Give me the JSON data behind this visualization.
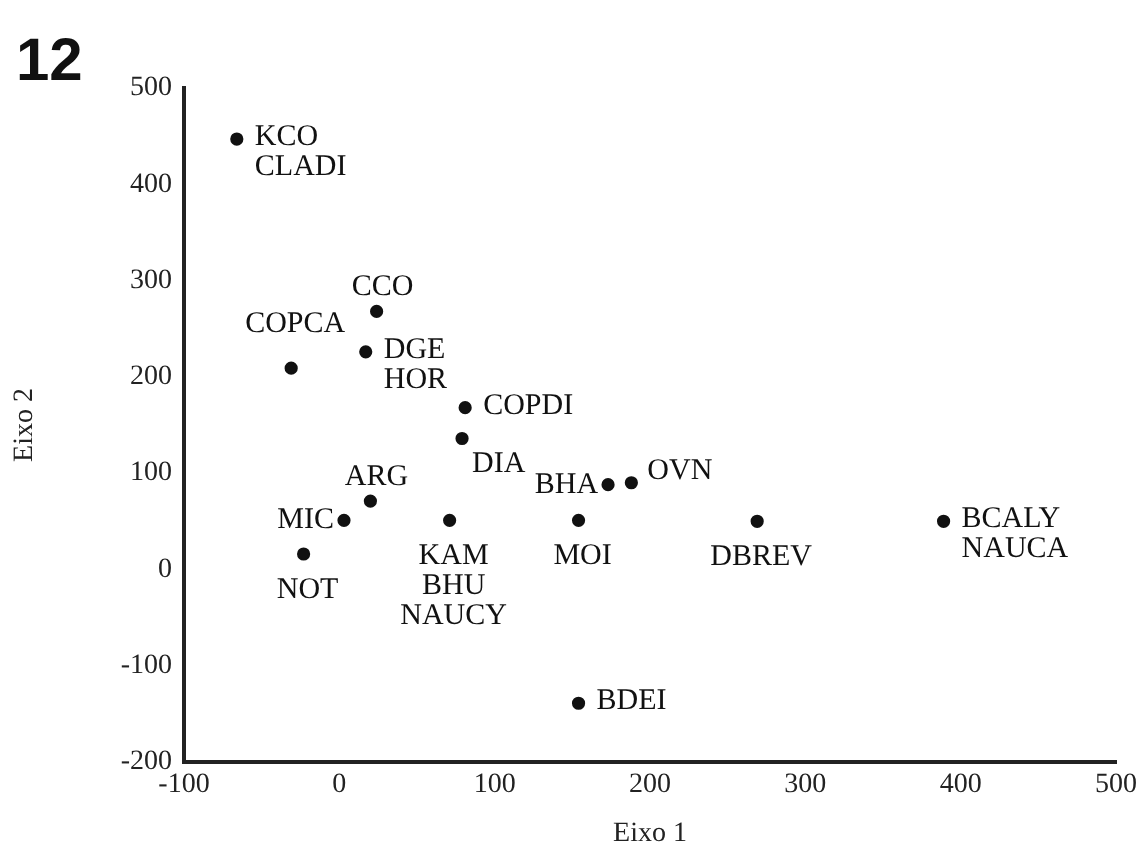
{
  "chart_data": {
    "type": "scatter",
    "title": "12",
    "xlabel": "Eixo 1",
    "ylabel": "Eixo 2",
    "x": [
      -66,
      24,
      17,
      -31,
      81,
      79,
      20,
      3,
      -23,
      71,
      154,
      173,
      188,
      269,
      389,
      154
    ],
    "values": [
      447,
      268,
      226,
      209,
      168,
      136,
      71,
      51,
      16,
      51,
      51,
      88,
      90,
      50,
      50,
      -139
    ],
    "color": "#111111",
    "marker": "circle",
    "grid": false,
    "legend": false,
    "xlim": [
      -100,
      500
    ],
    "xticks": [
      -100,
      0,
      100,
      200,
      300,
      400,
      500
    ],
    "ylim": [
      -200,
      500
    ],
    "yticks": [
      -200,
      -100,
      0,
      100,
      200,
      300,
      400,
      500
    ],
    "annotations": [
      {
        "text": "KCO\nCLADI",
        "x": -66,
        "y": 447
      },
      {
        "text": "CCO",
        "x": 24,
        "y": 268
      },
      {
        "text": "DGE\nHOR",
        "x": 17,
        "y": 226
      },
      {
        "text": "COPCA",
        "x": -31,
        "y": 209
      },
      {
        "text": "COPDI",
        "x": 81,
        "y": 168
      },
      {
        "text": "DIA",
        "x": 79,
        "y": 136
      },
      {
        "text": "ARG",
        "x": 20,
        "y": 71
      },
      {
        "text": "MIC",
        "x": 3,
        "y": 51
      },
      {
        "text": "NOT",
        "x": -23,
        "y": 16
      },
      {
        "text": "KAM\nBHU\nNAUCY",
        "x": 71,
        "y": 51
      },
      {
        "text": "MOI",
        "x": 154,
        "y": 51
      },
      {
        "text": "BHA",
        "x": 173,
        "y": 88
      },
      {
        "text": "OVN",
        "x": 188,
        "y": 90
      },
      {
        "text": "DBREV",
        "x": 269,
        "y": 50
      },
      {
        "text": "BCALY\nNAUCA",
        "x": 389,
        "y": 50
      },
      {
        "text": "BDEI",
        "x": 154,
        "y": -139
      }
    ]
  }
}
